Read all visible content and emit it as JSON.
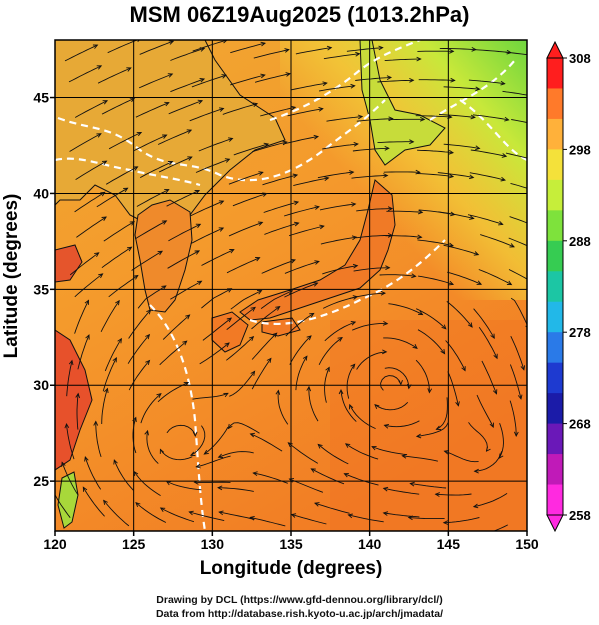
{
  "title": "MSM 06Z19Aug2025 (1013.2hPa)",
  "map": {
    "lon_range": [
      120,
      150
    ],
    "lat_range": [
      22.4,
      48
    ],
    "xlabel": "Longitude (degrees)",
    "ylabel": "Latitude  (degrees)",
    "x_ticks": [
      120,
      125,
      130,
      135,
      140,
      145,
      150
    ],
    "y_ticks": [
      25,
      30,
      35,
      40,
      45
    ],
    "field": "temperature (K) shaded, wind streamlines, land outlines",
    "low_centers": [
      {
        "lon": 141.2,
        "lat": 30.0
      },
      {
        "lon": 147.3,
        "lat": 26.6
      },
      {
        "lon": 127.5,
        "lat": 27.0
      }
    ]
  },
  "colorbar": {
    "min": 258,
    "max": 308,
    "tick_labels": [
      "308",
      "298",
      "288",
      "278",
      "268",
      "258"
    ],
    "colors": [
      "#ff1e1e",
      "#ff7a2a",
      "#ffb13a",
      "#f4e13a",
      "#c6ee3a",
      "#7ee23c",
      "#36cc52",
      "#1cc6a4",
      "#22b8e8",
      "#2a7ae8",
      "#1e3ad0",
      "#1b1ba8",
      "#6a18b8",
      "#c01ab8",
      "#ff2ae0"
    ]
  },
  "credits": {
    "line1": "Drawing by DCL (https://www.gfd-dennou.org/library/dcl/)",
    "line2": "Data from http://database.rish.kyoto-u.ac.jp/arch/jmadata/"
  }
}
